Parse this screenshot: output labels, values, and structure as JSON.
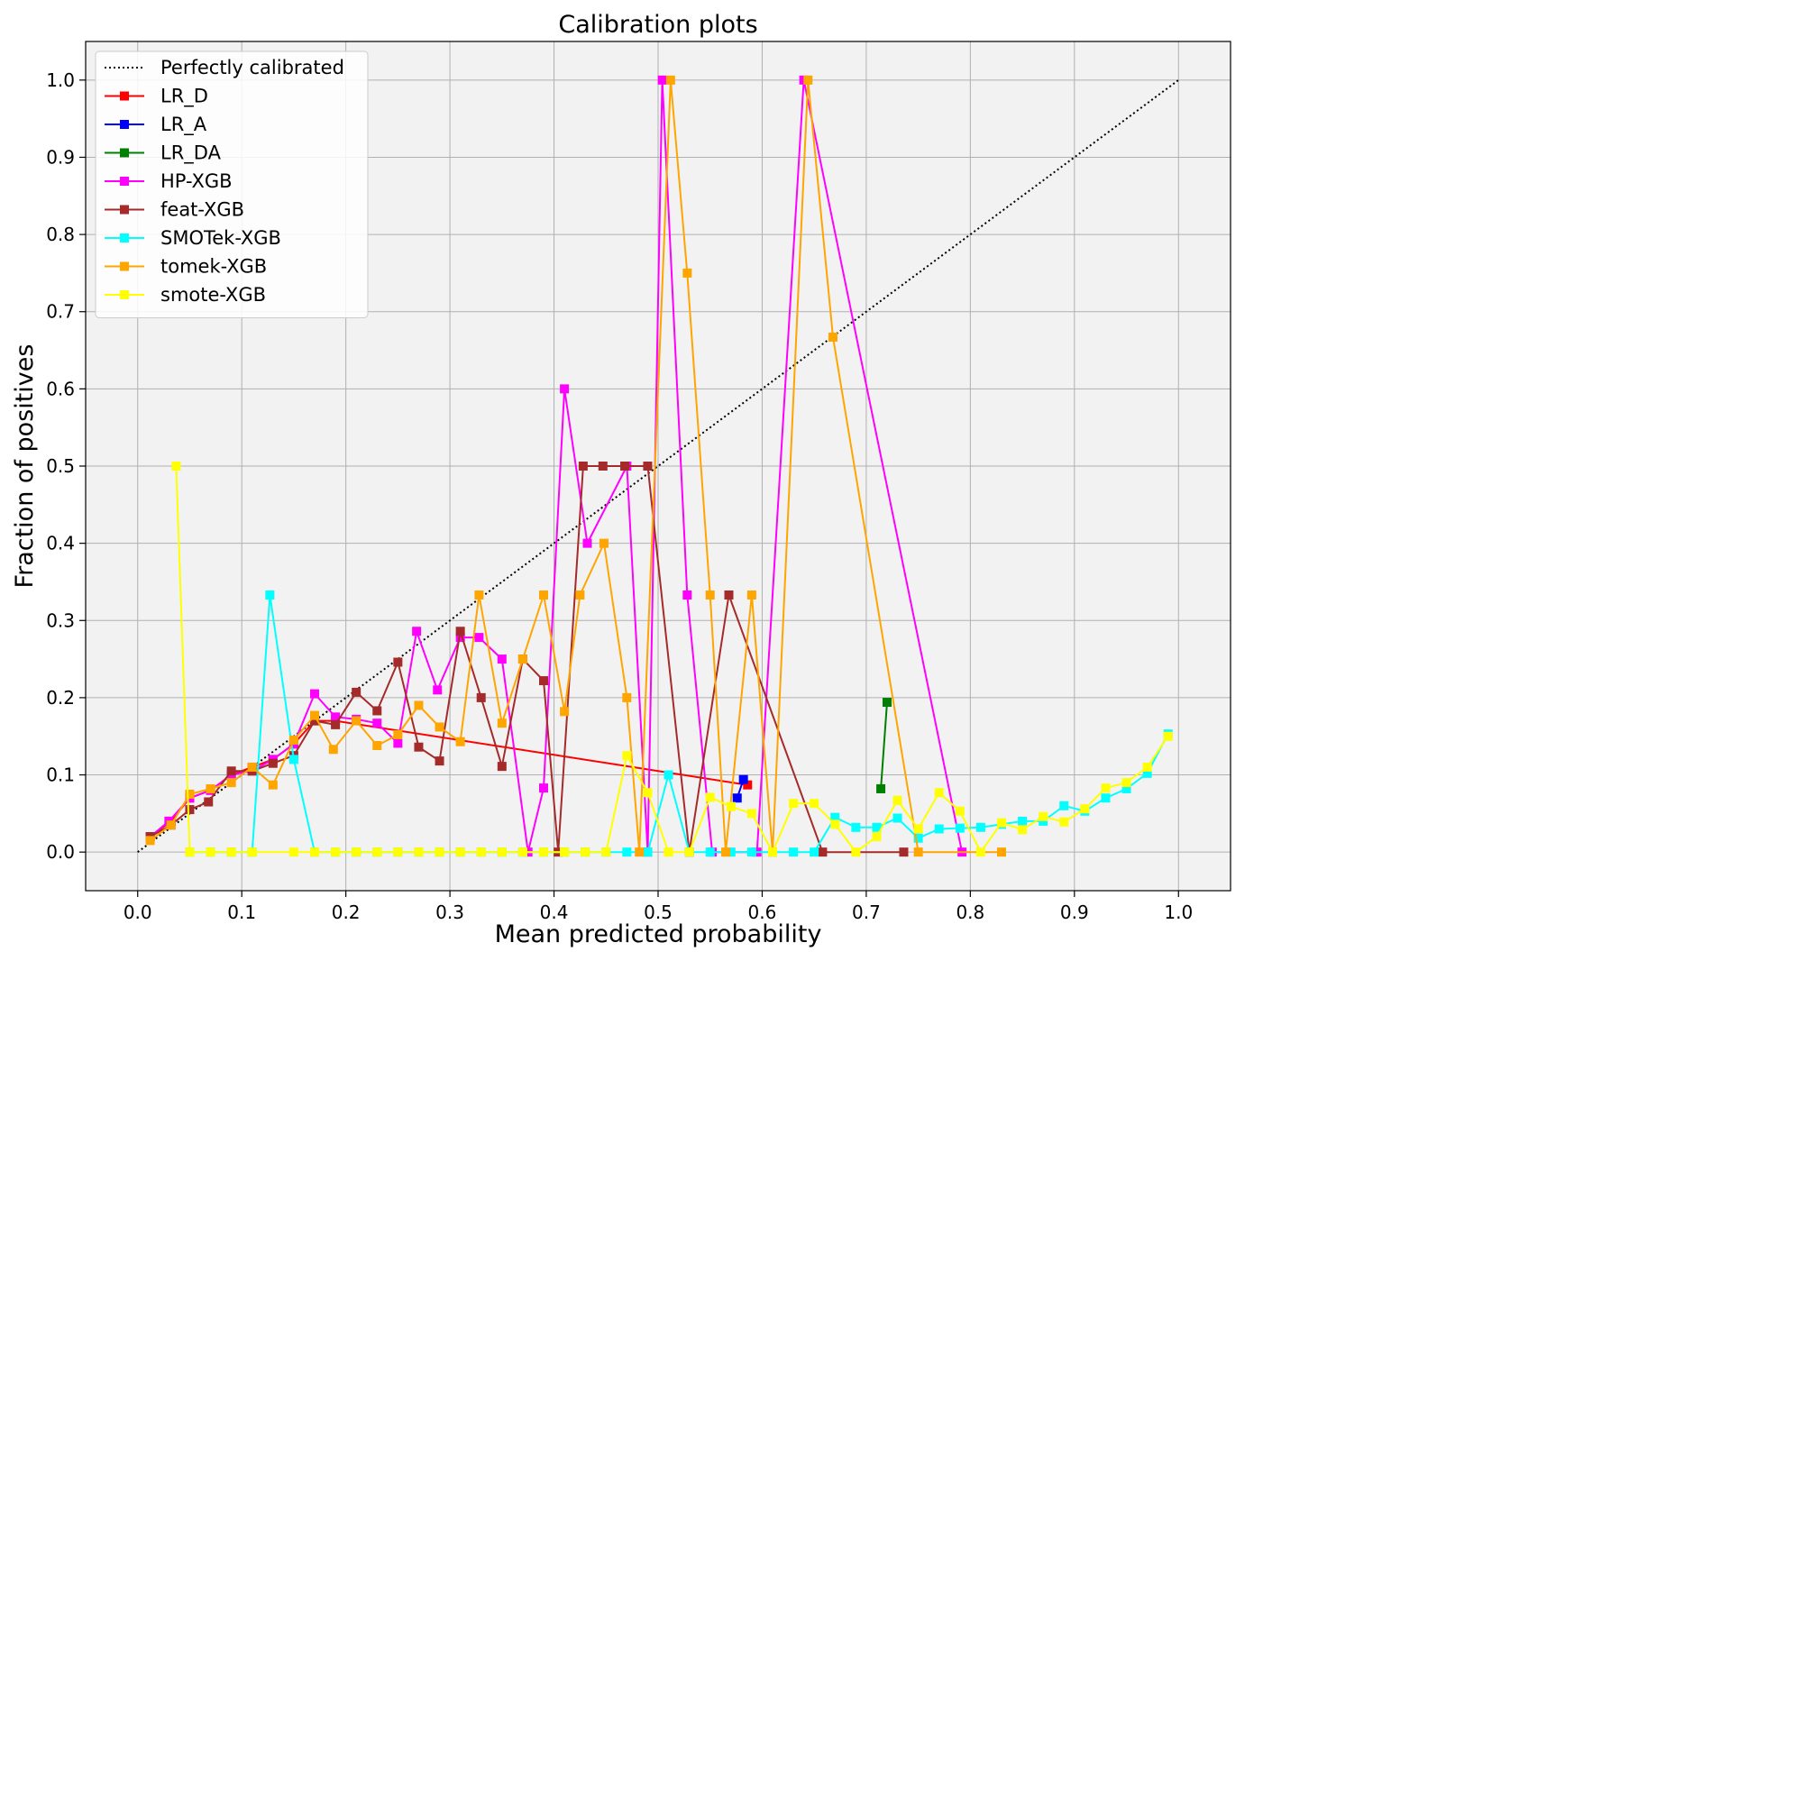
{
  "chart_data": {
    "type": "line",
    "title": "Calibration plots",
    "xlabel": "Mean predicted probability",
    "ylabel": "Fraction of positives",
    "xlim": [
      -0.05,
      1.05
    ],
    "ylim": [
      -0.05,
      1.05
    ],
    "xticks": [
      0.0,
      0.1,
      0.2,
      0.3,
      0.4,
      0.5,
      0.6,
      0.7,
      0.8,
      0.9,
      1.0
    ],
    "yticks": [
      0.0,
      0.1,
      0.2,
      0.3,
      0.4,
      0.5,
      0.6,
      0.7,
      0.8,
      0.9,
      1.0
    ],
    "xtick_labels": [
      "0.0",
      "0.1",
      "0.2",
      "0.3",
      "0.4",
      "0.5",
      "0.6",
      "0.7",
      "0.8",
      "0.9",
      "1.0"
    ],
    "ytick_labels": [
      "0.0",
      "0.1",
      "0.2",
      "0.3",
      "0.4",
      "0.5",
      "0.6",
      "0.7",
      "0.8",
      "0.9",
      "1.0"
    ],
    "grid": true,
    "background": "#f2f2f2",
    "legend_position": "top-left",
    "reference": {
      "name": "Perfectly calibrated",
      "style": "dotted",
      "color": "#000000",
      "x": [
        0.0,
        1.0
      ],
      "y": [
        0.0,
        1.0
      ]
    },
    "series": [
      {
        "name": "LR_D",
        "color": "#ff0000",
        "x": [
          0.012,
          0.032,
          0.05,
          0.07,
          0.09,
          0.11,
          0.13,
          0.15,
          0.17,
          0.19,
          0.586
        ],
        "y": [
          0.02,
          0.04,
          0.07,
          0.08,
          0.1,
          0.11,
          0.12,
          0.14,
          0.17,
          0.17,
          0.087
        ]
      },
      {
        "name": "LR_A",
        "color": "#0000ff",
        "x": [
          0.576,
          0.582
        ],
        "y": [
          0.07,
          0.094
        ]
      },
      {
        "name": "LR_DA",
        "color": "#008000",
        "x": [
          0.714,
          0.72
        ],
        "y": [
          0.082,
          0.194
        ]
      },
      {
        "name": "HP-XGB",
        "color": "#ff00ff",
        "x": [
          0.012,
          0.03,
          0.05,
          0.07,
          0.09,
          0.11,
          0.13,
          0.15,
          0.17,
          0.19,
          0.21,
          0.23,
          0.25,
          0.268,
          0.288,
          0.31,
          0.328,
          0.35,
          0.375,
          0.39,
          0.41,
          0.432,
          0.47,
          0.49,
          0.504,
          0.528,
          0.552,
          0.595,
          0.64,
          0.792
        ],
        "y": [
          0.02,
          0.04,
          0.07,
          0.08,
          0.1,
          0.105,
          0.12,
          0.14,
          0.205,
          0.175,
          0.172,
          0.167,
          0.141,
          0.286,
          0.21,
          0.278,
          0.278,
          0.25,
          0.0,
          0.083,
          0.6,
          0.4,
          0.5,
          0.0,
          1.0,
          0.333,
          0.0,
          0.0,
          1.0,
          0.0
        ]
      },
      {
        "name": "feat-XGB",
        "color": "#a52a2a",
        "x": [
          0.012,
          0.032,
          0.05,
          0.068,
          0.09,
          0.11,
          0.13,
          0.15,
          0.17,
          0.19,
          0.21,
          0.23,
          0.25,
          0.27,
          0.29,
          0.31,
          0.33,
          0.35,
          0.37,
          0.39,
          0.404,
          0.428,
          0.447,
          0.468,
          0.49,
          0.53,
          0.568,
          0.658,
          0.736
        ],
        "y": [
          0.02,
          0.035,
          0.055,
          0.065,
          0.105,
          0.105,
          0.115,
          0.125,
          0.17,
          0.165,
          0.207,
          0.183,
          0.246,
          0.136,
          0.118,
          0.286,
          0.2,
          0.111,
          0.25,
          0.222,
          0.0,
          0.5,
          0.5,
          0.5,
          0.5,
          0.0,
          0.333,
          0.0,
          0.0
        ]
      },
      {
        "name": "SMOTek-XGB",
        "color": "#00ffff",
        "x": [
          0.05,
          0.07,
          0.09,
          0.11,
          0.127,
          0.15,
          0.17,
          0.19,
          0.21,
          0.23,
          0.25,
          0.27,
          0.29,
          0.31,
          0.33,
          0.35,
          0.37,
          0.39,
          0.41,
          0.43,
          0.45,
          0.47,
          0.49,
          0.51,
          0.53,
          0.55,
          0.57,
          0.59,
          0.61,
          0.63,
          0.65,
          0.67,
          0.69,
          0.71,
          0.73,
          0.75,
          0.77,
          0.79,
          0.81,
          0.83,
          0.85,
          0.87,
          0.89,
          0.91,
          0.93,
          0.95,
          0.97,
          0.99
        ],
        "y": [
          0.0,
          0.0,
          0.0,
          0.0,
          0.333,
          0.12,
          0.0,
          0.0,
          0.0,
          0.0,
          0.0,
          0.0,
          0.0,
          0.0,
          0.0,
          0.0,
          0.0,
          0.0,
          0.0,
          0.0,
          0.0,
          0.0,
          0.0,
          0.1,
          0.0,
          0.0,
          0.0,
          0.0,
          0.0,
          0.0,
          0.0,
          0.045,
          0.032,
          0.032,
          0.044,
          0.018,
          0.03,
          0.031,
          0.032,
          0.036,
          0.04,
          0.04,
          0.06,
          0.053,
          0.07,
          0.082,
          0.102,
          0.153
        ]
      },
      {
        "name": "tomek-XGB",
        "color": "#ffa500",
        "x": [
          0.012,
          0.032,
          0.05,
          0.07,
          0.09,
          0.11,
          0.13,
          0.15,
          0.17,
          0.188,
          0.21,
          0.23,
          0.25,
          0.27,
          0.29,
          0.31,
          0.328,
          0.35,
          0.37,
          0.39,
          0.41,
          0.425,
          0.448,
          0.47,
          0.482,
          0.512,
          0.528,
          0.55,
          0.565,
          0.59,
          0.61,
          0.644,
          0.668,
          0.75,
          0.83
        ],
        "y": [
          0.015,
          0.035,
          0.075,
          0.082,
          0.09,
          0.11,
          0.087,
          0.145,
          0.177,
          0.133,
          0.17,
          0.138,
          0.152,
          0.19,
          0.162,
          0.143,
          0.333,
          0.167,
          0.25,
          0.333,
          0.182,
          0.333,
          0.4,
          0.2,
          0.0,
          1.0,
          0.75,
          0.333,
          0.0,
          0.333,
          0.0,
          1.0,
          0.667,
          0.0,
          0.0
        ]
      },
      {
        "name": "smote-XGB",
        "color": "#ffff00",
        "x": [
          0.037,
          0.05,
          0.07,
          0.09,
          0.11,
          0.15,
          0.17,
          0.19,
          0.21,
          0.23,
          0.25,
          0.27,
          0.29,
          0.31,
          0.33,
          0.35,
          0.37,
          0.39,
          0.41,
          0.43,
          0.45,
          0.47,
          0.49,
          0.51,
          0.53,
          0.55,
          0.57,
          0.59,
          0.61,
          0.63,
          0.65,
          0.67,
          0.69,
          0.71,
          0.73,
          0.75,
          0.77,
          0.79,
          0.81,
          0.83,
          0.85,
          0.87,
          0.89,
          0.91,
          0.93,
          0.95,
          0.97,
          0.99
        ],
        "y": [
          0.5,
          0.0,
          0.0,
          0.0,
          0.0,
          0.0,
          0.0,
          0.0,
          0.0,
          0.0,
          0.0,
          0.0,
          0.0,
          0.0,
          0.0,
          0.0,
          0.0,
          0.0,
          0.0,
          0.0,
          0.0,
          0.125,
          0.077,
          0.0,
          0.0,
          0.071,
          0.059,
          0.05,
          0.0,
          0.063,
          0.063,
          0.036,
          0.0,
          0.02,
          0.067,
          0.03,
          0.077,
          0.053,
          0.0,
          0.038,
          0.029,
          0.046,
          0.039,
          0.056,
          0.083,
          0.09,
          0.11,
          0.15
        ]
      }
    ]
  }
}
